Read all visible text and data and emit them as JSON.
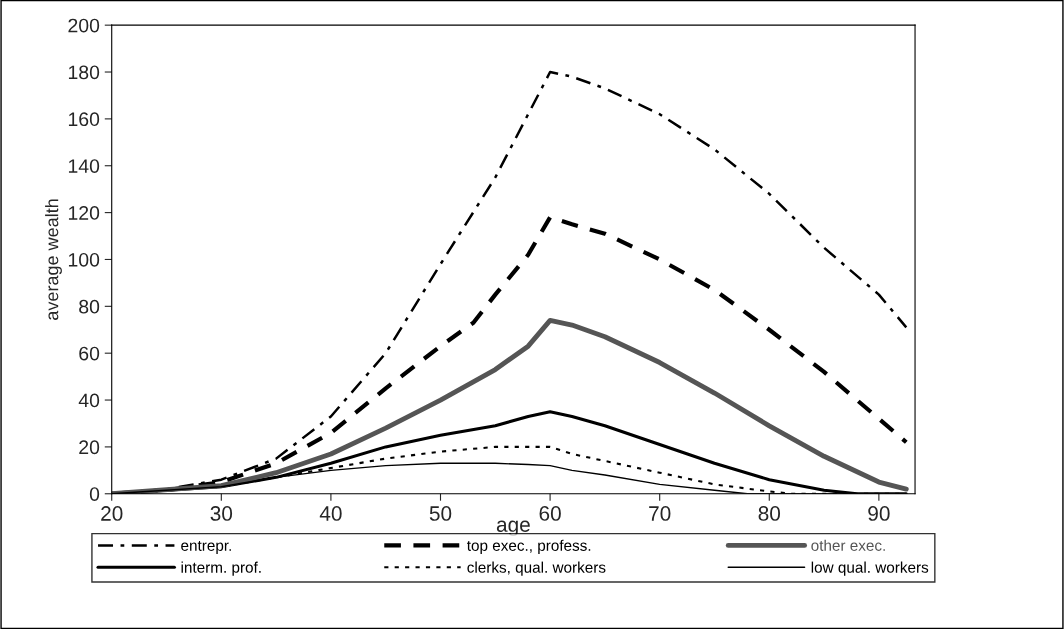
{
  "chart_data": {
    "type": "line",
    "xlabel": "age",
    "ylabel": "average wealth",
    "xlim": [
      20,
      93.3
    ],
    "xticks": [
      20,
      30,
      40,
      50,
      60,
      70,
      80,
      90
    ],
    "ylim": [
      0,
      200
    ],
    "yticks": [
      0,
      20,
      40,
      60,
      80,
      100,
      120,
      140,
      160,
      180,
      200
    ],
    "grid": false,
    "legend": "bottom",
    "marker": "none",
    "series": [
      {
        "name": "entrepr.",
        "color": "#000000",
        "line_style": "dashdot",
        "x": [
          20,
          25,
          30,
          35,
          40,
          45,
          50,
          55,
          58,
          60,
          62,
          65,
          70,
          75,
          80,
          85,
          90,
          92.5
        ],
        "values": [
          0,
          2,
          6,
          15,
          33,
          60,
          98,
          135,
          162,
          180,
          178,
          173,
          162,
          147,
          128,
          105,
          85,
          71
        ]
      },
      {
        "name": "interm. prof.",
        "color": "#000000",
        "line_style": "solid",
        "x": [
          20,
          30,
          35,
          40,
          45,
          50,
          55,
          58,
          60,
          62,
          65,
          70,
          75,
          80,
          85,
          88,
          92.5
        ],
        "values": [
          0,
          3,
          7,
          13,
          20,
          25,
          29,
          33,
          35,
          33,
          29,
          21,
          13,
          6,
          1.5,
          0,
          0
        ]
      },
      {
        "name": "top exec., profess.",
        "color": "#000000",
        "line_style": "dashed",
        "x": [
          20,
          25,
          30,
          35,
          40,
          45,
          50,
          53,
          55,
          58,
          60,
          62,
          65,
          70,
          75,
          80,
          85,
          90,
          92.5
        ],
        "values": [
          0,
          1.5,
          5,
          13,
          26,
          45,
          63,
          73,
          85,
          102,
          118,
          115,
          111,
          100,
          87,
          70,
          52,
          32,
          22
        ]
      },
      {
        "name": "clerks, qual. workers",
        "color": "#000000",
        "line_style": "dotted",
        "x": [
          20,
          30,
          35,
          40,
          45,
          50,
          55,
          60,
          62,
          65,
          70,
          75,
          80,
          82,
          92.5
        ],
        "values": [
          0,
          3,
          7,
          11,
          15,
          18,
          20,
          20,
          17,
          14,
          9,
          4,
          1,
          0,
          0
        ]
      },
      {
        "name": "other exec.",
        "color": "#555555",
        "line_style": "solid",
        "x": [
          20,
          30,
          35,
          40,
          45,
          50,
          55,
          58,
          60,
          62,
          65,
          70,
          75,
          80,
          85,
          90,
          92.5
        ],
        "values": [
          0,
          3.5,
          9,
          17,
          28,
          40,
          53,
          63,
          74,
          72,
          67,
          56,
          43,
          29,
          16,
          5,
          2
        ]
      },
      {
        "name": "low qual. workers",
        "color": "#000000",
        "line_style": "solid",
        "x": [
          20,
          30,
          35,
          40,
          45,
          50,
          55,
          58,
          60,
          62,
          65,
          70,
          75,
          78,
          92.5
        ],
        "values": [
          0,
          3,
          7,
          10,
          12,
          13,
          13,
          12.5,
          12,
          10,
          8,
          4,
          1.5,
          0,
          0
        ]
      }
    ]
  }
}
